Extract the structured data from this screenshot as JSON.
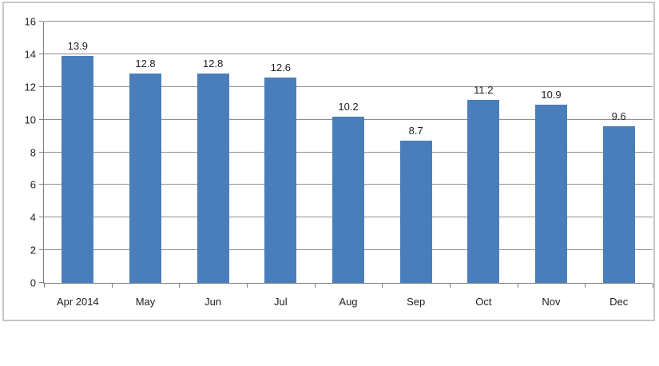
{
  "chart_data": {
    "type": "bar",
    "title": "",
    "xlabel": "",
    "ylabel": "",
    "categories": [
      "Apr 2014",
      "May",
      "Jun",
      "Jul",
      "Aug",
      "Sep",
      "Oct",
      "Nov",
      "Dec"
    ],
    "values": [
      13.9,
      12.8,
      12.8,
      12.6,
      10.2,
      8.7,
      11.2,
      10.9,
      9.6
    ],
    "data_labels": [
      "13.9",
      "12.8",
      "12.8",
      "12.6",
      "10.2",
      "8.7",
      "11.2",
      "10.9",
      "9.6"
    ],
    "ylim": [
      0,
      16
    ],
    "yticks": [
      0,
      2,
      4,
      6,
      8,
      10,
      12,
      14,
      16
    ],
    "grid": true,
    "legend": false,
    "colors": {
      "bar": "#4A7EBB",
      "gridline": "#8f8f8f",
      "axis": "#7f7f7f",
      "text": "#1f1f1f",
      "frame_border": "#c7c7c7",
      "background": "#ffffff"
    }
  }
}
